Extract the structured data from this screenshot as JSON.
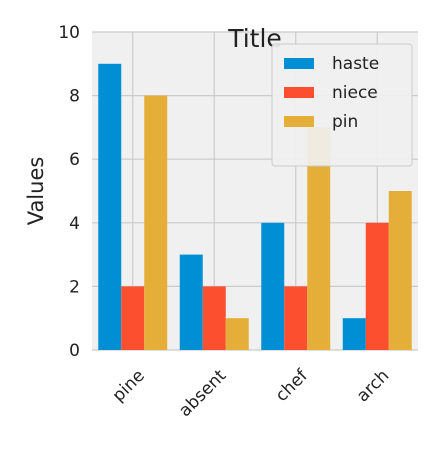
{
  "chart_data": {
    "type": "bar",
    "title": "Title",
    "xlabel": "",
    "ylabel": "Values",
    "categories": [
      "pine",
      "absent",
      "chef",
      "arch"
    ],
    "series": [
      {
        "name": "haste",
        "values": [
          9,
          3,
          4,
          1
        ],
        "color": "#008fd5"
      },
      {
        "name": "niece",
        "values": [
          2,
          2,
          2,
          4
        ],
        "color": "#fc4f30"
      },
      {
        "name": "pin",
        "values": [
          8,
          1,
          7,
          5
        ],
        "color": "#e5ae38"
      }
    ],
    "ylim": [
      0,
      10
    ],
    "yticks": [
      0,
      2,
      4,
      6,
      8,
      10
    ],
    "grid": true,
    "legend_position": "top-right",
    "background": "#ffffff",
    "plot_background": "#f0f0f0",
    "grid_color": "#cbcbcb"
  }
}
